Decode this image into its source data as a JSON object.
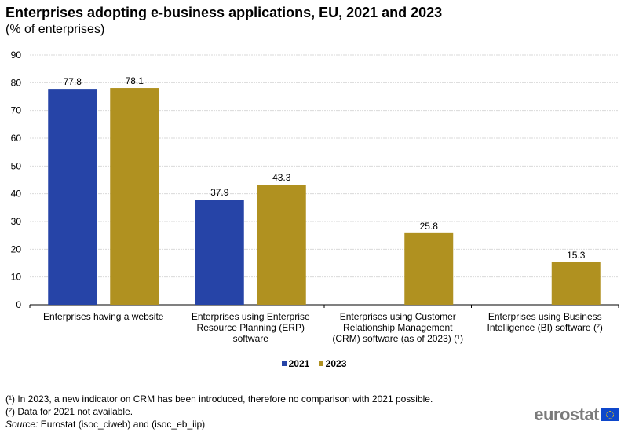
{
  "chart_data": {
    "type": "bar",
    "title": "Enterprises adopting e-business applications, EU, 2021 and 2023",
    "subtitle": "(% of enterprises)",
    "xlabel": "",
    "ylabel": "",
    "ylim": [
      0,
      90
    ],
    "yticks": [
      0,
      10,
      20,
      30,
      40,
      50,
      60,
      70,
      80,
      90
    ],
    "grid": true,
    "legend_position": "bottom-center",
    "categories": [
      [
        "Enterprises having a website"
      ],
      [
        "Enterprises using Enterprise",
        "Resource Planning (ERP)",
        "software"
      ],
      [
        "Enterprises using Customer",
        "Relationship Management",
        "(CRM) software (as of 2023) (¹)"
      ],
      [
        "Enterprises using Business",
        "Intelligence (BI) software (²)"
      ]
    ],
    "series": [
      {
        "name": "2021",
        "color": "#2644a7",
        "values": [
          77.8,
          37.9,
          null,
          null
        ]
      },
      {
        "name": "2023",
        "color": "#b09120",
        "values": [
          78.1,
          43.3,
          25.8,
          15.3
        ]
      }
    ]
  },
  "footnotes": [
    "(¹) In 2023, a new indicator on CRM has been introduced, therefore no comparison with 2021 possible.",
    "(²) Data for 2021 not available."
  ],
  "source": {
    "label": "Source:",
    "text": " Eurostat (isoc_ciweb) and (isoc_eb_iip)"
  },
  "logo": {
    "text": "eurostat",
    "icon": "eu-flag-icon"
  }
}
